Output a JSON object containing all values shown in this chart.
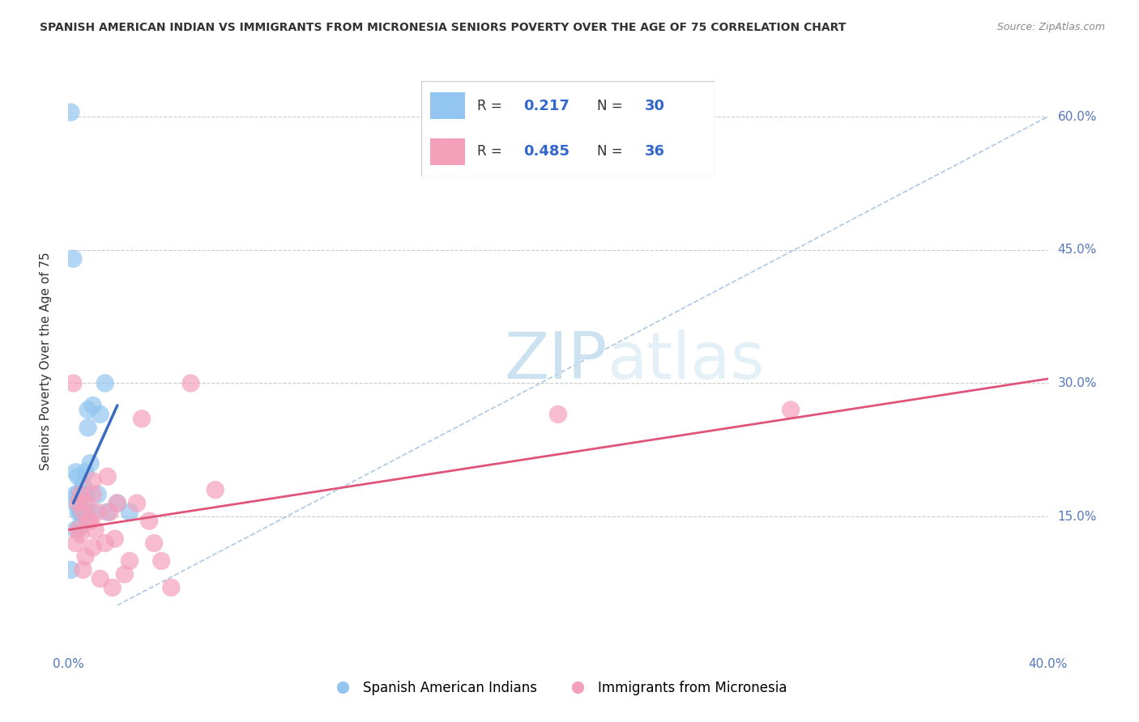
{
  "title": "SPANISH AMERICAN INDIAN VS IMMIGRANTS FROM MICRONESIA SENIORS POVERTY OVER THE AGE OF 75 CORRELATION CHART",
  "source": "Source: ZipAtlas.com",
  "ylabel": "Seniors Poverty Over the Age of 75",
  "xlim": [
    0.0,
    0.4
  ],
  "ylim": [
    0.0,
    0.65
  ],
  "ytick_right_labels": [
    "15.0%",
    "30.0%",
    "45.0%",
    "60.0%"
  ],
  "ytick_right_values": [
    0.15,
    0.3,
    0.45,
    0.6
  ],
  "grid_color": "#cccccc",
  "background_color": "#ffffff",
  "legend_R1": "0.217",
  "legend_N1": "30",
  "legend_R2": "0.485",
  "legend_N2": "36",
  "blue_color": "#92C5F0",
  "blue_dark": "#3A6BBF",
  "pink_color": "#F4A0BB",
  "pink_dark": "#E0547A",
  "blue_scatter_x": [
    0.001,
    0.001,
    0.002,
    0.003,
    0.003,
    0.003,
    0.003,
    0.004,
    0.004,
    0.004,
    0.005,
    0.005,
    0.005,
    0.005,
    0.006,
    0.006,
    0.007,
    0.007,
    0.007,
    0.008,
    0.008,
    0.009,
    0.01,
    0.01,
    0.012,
    0.013,
    0.015,
    0.016,
    0.02,
    0.025
  ],
  "blue_scatter_y": [
    0.605,
    0.09,
    0.44,
    0.2,
    0.175,
    0.165,
    0.135,
    0.195,
    0.175,
    0.155,
    0.175,
    0.155,
    0.155,
    0.14,
    0.185,
    0.155,
    0.2,
    0.175,
    0.155,
    0.25,
    0.27,
    0.21,
    0.275,
    0.155,
    0.175,
    0.265,
    0.3,
    0.155,
    0.165,
    0.155
  ],
  "pink_scatter_x": [
    0.002,
    0.003,
    0.004,
    0.005,
    0.005,
    0.006,
    0.006,
    0.007,
    0.007,
    0.008,
    0.009,
    0.01,
    0.01,
    0.011,
    0.012,
    0.013,
    0.015,
    0.016,
    0.017,
    0.018,
    0.019,
    0.02,
    0.023,
    0.025,
    0.028,
    0.03,
    0.033,
    0.035,
    0.038,
    0.042,
    0.05,
    0.06,
    0.2,
    0.295,
    0.004,
    0.01
  ],
  "pink_scatter_y": [
    0.3,
    0.12,
    0.135,
    0.13,
    0.175,
    0.09,
    0.155,
    0.105,
    0.165,
    0.145,
    0.145,
    0.19,
    0.175,
    0.135,
    0.155,
    0.08,
    0.12,
    0.195,
    0.155,
    0.07,
    0.125,
    0.165,
    0.085,
    0.1,
    0.165,
    0.26,
    0.145,
    0.12,
    0.1,
    0.07,
    0.3,
    0.18,
    0.265,
    0.27,
    0.165,
    0.115
  ],
  "blue_line_x": [
    0.002,
    0.02
  ],
  "blue_line_y": [
    0.165,
    0.275
  ],
  "pink_line_x": [
    0.0,
    0.4
  ],
  "pink_line_y": [
    0.135,
    0.305
  ],
  "ref_line_x": [
    0.02,
    0.4
  ],
  "ref_line_y": [
    0.05,
    0.6
  ]
}
